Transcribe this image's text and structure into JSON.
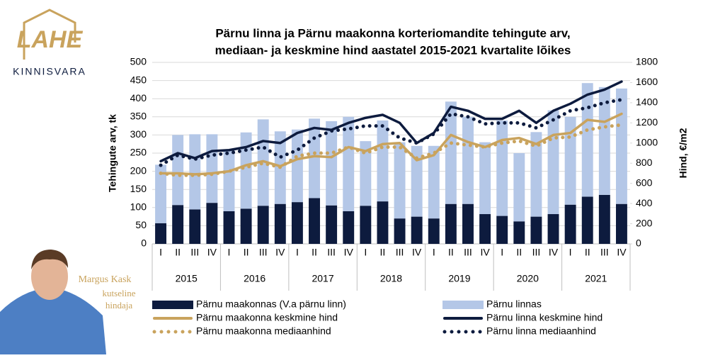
{
  "logo": {
    "mark": "LAHE",
    "name": "KINNISVARA"
  },
  "person": {
    "name": "Margus Kask",
    "role": [
      "kutseline",
      "hindaja"
    ]
  },
  "chart_data": {
    "type": "bar",
    "stacked": true,
    "title": [
      "Pärnu linna ja Pärnu maakonna korteriomandite tehingute arv,",
      "mediaan- ja keskmine hind aastatel 2015-2021 kvartalite lõikes"
    ],
    "y_label": "Tehingute arv, tk",
    "y2_label": "Hind, €/m2",
    "categories": [
      "I",
      "II",
      "III",
      "IV",
      "I",
      "II",
      "III",
      "IV",
      "I",
      "II",
      "III",
      "IV",
      "I",
      "II",
      "III",
      "IV",
      "I",
      "II",
      "III",
      "IV",
      "I",
      "II",
      "III",
      "IV",
      "I",
      "II",
      "III",
      "IV"
    ],
    "years": [
      "2015",
      "2016",
      "2017",
      "2018",
      "2019",
      "2020",
      "2021"
    ],
    "ylim": [
      0,
      500
    ],
    "yticks": [
      0,
      50,
      100,
      150,
      200,
      250,
      300,
      350,
      400,
      450,
      500
    ],
    "y2lim": [
      0,
      1800
    ],
    "y2ticks": [
      0,
      200,
      400,
      600,
      800,
      1000,
      1200,
      1400,
      1600,
      1800
    ],
    "grid": true,
    "series": [
      {
        "name": "Pärnu maakonnas (V.a pärnu linn)",
        "type": "bar",
        "color": "#0d1b3e",
        "values": [
          57,
          107,
          95,
          113,
          90,
          97,
          105,
          110,
          115,
          126,
          106,
          90,
          105,
          117,
          70,
          75,
          70,
          110,
          110,
          82,
          77,
          62,
          75,
          82,
          108,
          130,
          135,
          110
        ]
      },
      {
        "name": "Pärnu linnas",
        "type": "bar",
        "color": "#b4c7e7",
        "values": [
          161,
          193,
          207,
          189,
          168,
          210,
          238,
          200,
          200,
          219,
          232,
          260,
          178,
          223,
          210,
          195,
          200,
          282,
          240,
          198,
          263,
          188,
          233,
          286,
          242,
          313,
          297,
          318
        ]
      },
      {
        "name": "Pärnu maakonna keskmine hind",
        "type": "line",
        "axis": "y2",
        "color": "#c9a35d",
        "style": "solid",
        "values": [
          700,
          700,
          690,
          700,
          720,
          780,
          820,
          770,
          840,
          870,
          860,
          960,
          920,
          990,
          1000,
          830,
          880,
          1080,
          1010,
          960,
          1030,
          1050,
          990,
          1080,
          1100,
          1230,
          1210,
          1290
        ]
      },
      {
        "name": "Pärnu linna keskmine hind",
        "type": "line",
        "axis": "y2",
        "color": "#0d1b3e",
        "style": "solid",
        "values": [
          820,
          900,
          850,
          920,
          930,
          960,
          1020,
          1000,
          1100,
          1150,
          1130,
          1200,
          1250,
          1280,
          1200,
          1000,
          1100,
          1360,
          1320,
          1240,
          1240,
          1320,
          1200,
          1320,
          1390,
          1480,
          1530,
          1610
        ]
      },
      {
        "name": "Pärnu maakonna mediaanhind",
        "type": "line",
        "axis": "y2",
        "color": "#c9a35d",
        "style": "dotted",
        "values": [
          700,
          680,
          680,
          690,
          720,
          760,
          800,
          760,
          870,
          900,
          900,
          960,
          900,
          960,
          960,
          850,
          900,
          1000,
          980,
          960,
          1000,
          1020,
          970,
          1050,
          1060,
          1130,
          1160,
          1180
        ]
      },
      {
        "name": "Pärnu linna mediaanhind",
        "type": "line",
        "axis": "y2",
        "color": "#0d1b3e",
        "style": "dotted",
        "values": [
          780,
          880,
          840,
          880,
          900,
          930,
          960,
          860,
          930,
          1050,
          1120,
          1140,
          1170,
          1170,
          1050,
          1000,
          1090,
          1290,
          1260,
          1190,
          1200,
          1200,
          1150,
          1230,
          1320,
          1350,
          1400,
          1430
        ]
      }
    ]
  }
}
